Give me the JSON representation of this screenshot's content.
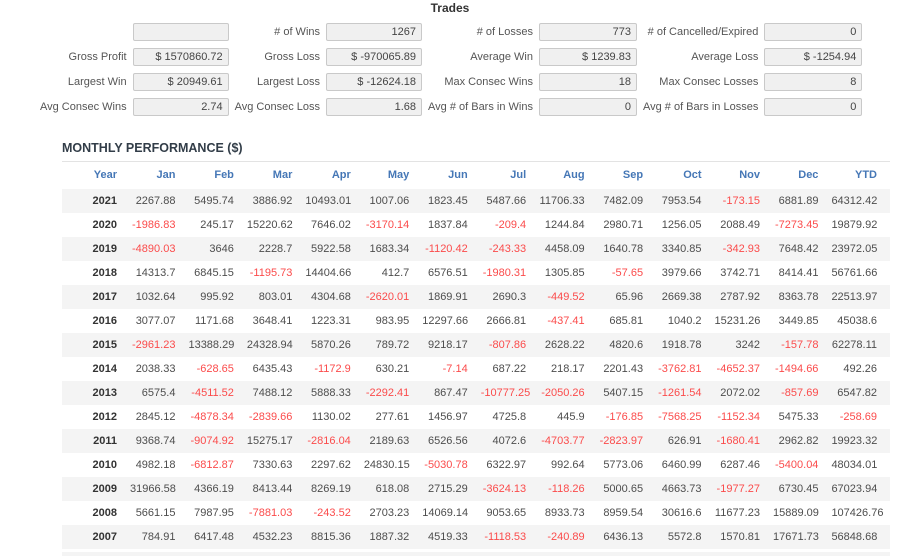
{
  "trades": {
    "title": "Trades",
    "rows": [
      [
        {
          "label": "",
          "value": ""
        },
        {
          "label": "# of Wins",
          "value": "1267"
        },
        {
          "label": "# of Losses",
          "value": "773"
        },
        {
          "label": "# of Cancelled/Expired",
          "value": "0"
        }
      ],
      [
        {
          "label": "Gross Profit",
          "value": "$ 1570860.72"
        },
        {
          "label": "Gross Loss",
          "value": "$ -970065.89"
        },
        {
          "label": "Average Win",
          "value": "$ 1239.83"
        },
        {
          "label": "Average Loss",
          "value": "$ -1254.94"
        }
      ],
      [
        {
          "label": "Largest Win",
          "value": "$ 20949.61"
        },
        {
          "label": "Largest Loss",
          "value": "$ -12624.18"
        },
        {
          "label": "Max Consec Wins",
          "value": "18"
        },
        {
          "label": "Max Consec Losses",
          "value": "8"
        }
      ],
      [
        {
          "label": "Avg Consec Wins",
          "value": "2.74"
        },
        {
          "label": "Avg Consec Loss",
          "value": "1.68"
        },
        {
          "label": "Avg # of Bars in Wins",
          "value": "0"
        },
        {
          "label": "Avg # of Bars in Losses",
          "value": "0"
        }
      ]
    ]
  },
  "monthly": {
    "title": "MONTHLY PERFORMANCE ($)",
    "columns": [
      "Year",
      "Jan",
      "Feb",
      "Mar",
      "Apr",
      "May",
      "Jun",
      "Jul",
      "Aug",
      "Sep",
      "Oct",
      "Nov",
      "Dec",
      "YTD"
    ],
    "rows": [
      {
        "year": "2021",
        "values": [
          "2267.88",
          "5495.74",
          "3886.92",
          "10493.01",
          "1007.06",
          "1823.45",
          "5487.66",
          "11706.33",
          "7482.09",
          "7953.54",
          "-173.15",
          "6881.89",
          "64312.42"
        ]
      },
      {
        "year": "2020",
        "values": [
          "-1986.83",
          "245.17",
          "15220.62",
          "7646.02",
          "-3170.14",
          "1837.84",
          "-209.4",
          "1244.84",
          "2980.71",
          "1256.05",
          "2088.49",
          "-7273.45",
          "19879.92"
        ]
      },
      {
        "year": "2019",
        "values": [
          "-4890.03",
          "3646",
          "2228.7",
          "5922.58",
          "1683.34",
          "-1120.42",
          "-243.33",
          "4458.09",
          "1640.78",
          "3340.85",
          "-342.93",
          "7648.42",
          "23972.05"
        ]
      },
      {
        "year": "2018",
        "values": [
          "14313.7",
          "6845.15",
          "-1195.73",
          "14404.66",
          "412.7",
          "6576.51",
          "-1980.31",
          "1305.85",
          "-57.65",
          "3979.66",
          "3742.71",
          "8414.41",
          "56761.66"
        ]
      },
      {
        "year": "2017",
        "values": [
          "1032.64",
          "995.92",
          "803.01",
          "4304.68",
          "-2620.01",
          "1869.91",
          "2690.3",
          "-449.52",
          "65.96",
          "2669.38",
          "2787.92",
          "8363.78",
          "22513.97"
        ]
      },
      {
        "year": "2016",
        "values": [
          "3077.07",
          "1171.68",
          "3648.41",
          "1223.31",
          "983.95",
          "12297.66",
          "2666.81",
          "-437.41",
          "685.81",
          "1040.2",
          "15231.26",
          "3449.85",
          "45038.6"
        ]
      },
      {
        "year": "2015",
        "values": [
          "-2961.23",
          "13388.29",
          "24328.94",
          "5870.26",
          "789.72",
          "9218.17",
          "-807.86",
          "2628.22",
          "4820.6",
          "1918.78",
          "3242",
          "-157.78",
          "62278.11"
        ]
      },
      {
        "year": "2014",
        "values": [
          "2038.33",
          "-628.65",
          "6435.43",
          "-1172.9",
          "630.21",
          "-7.14",
          "687.22",
          "218.17",
          "2201.43",
          "-3762.81",
          "-4652.37",
          "-1494.66",
          "492.26"
        ]
      },
      {
        "year": "2013",
        "values": [
          "6575.4",
          "-4511.52",
          "7488.12",
          "5888.33",
          "-2292.41",
          "867.47",
          "-10777.25",
          "-2050.26",
          "5407.15",
          "-1261.54",
          "2072.02",
          "-857.69",
          "6547.82"
        ]
      },
      {
        "year": "2012",
        "values": [
          "2845.12",
          "-4878.34",
          "-2839.66",
          "1130.02",
          "277.61",
          "1456.97",
          "4725.8",
          "445.9",
          "-176.85",
          "-7568.25",
          "-1152.34",
          "5475.33",
          "-258.69"
        ]
      },
      {
        "year": "2011",
        "values": [
          "9368.74",
          "-9074.92",
          "15275.17",
          "-2816.04",
          "2189.63",
          "6526.56",
          "4072.6",
          "-4703.77",
          "-2823.97",
          "626.91",
          "-1680.41",
          "2962.82",
          "19923.32"
        ]
      },
      {
        "year": "2010",
        "values": [
          "4982.18",
          "-6812.87",
          "7330.63",
          "2297.62",
          "24830.15",
          "-5030.78",
          "6322.97",
          "992.64",
          "5773.06",
          "6460.99",
          "6287.46",
          "-5400.04",
          "48034.01"
        ]
      },
      {
        "year": "2009",
        "values": [
          "31966.58",
          "4366.19",
          "8413.44",
          "8269.19",
          "618.08",
          "2715.29",
          "-3624.13",
          "-118.26",
          "5000.65",
          "4663.73",
          "-1977.27",
          "6730.45",
          "67023.94"
        ]
      },
      {
        "year": "2008",
        "values": [
          "5661.15",
          "7987.95",
          "-7881.03",
          "-243.52",
          "2703.23",
          "14069.14",
          "9053.65",
          "8933.73",
          "8959.54",
          "30616.6",
          "11677.23",
          "15889.09",
          "107426.76"
        ]
      },
      {
        "year": "2007",
        "values": [
          "784.91",
          "6417.48",
          "4532.23",
          "8815.36",
          "1887.32",
          "4519.33",
          "-1118.53",
          "-240.89",
          "6436.13",
          "5572.8",
          "1570.81",
          "17671.73",
          "56848.68"
        ]
      }
    ]
  },
  "colors": {
    "header_blue": "#4577b6",
    "negative_red": "#fb4b4b",
    "row_alt_gray": "#f4f4f4",
    "field_box_bg": "#f0f0f0",
    "field_box_border": "#c9c9c9"
  }
}
